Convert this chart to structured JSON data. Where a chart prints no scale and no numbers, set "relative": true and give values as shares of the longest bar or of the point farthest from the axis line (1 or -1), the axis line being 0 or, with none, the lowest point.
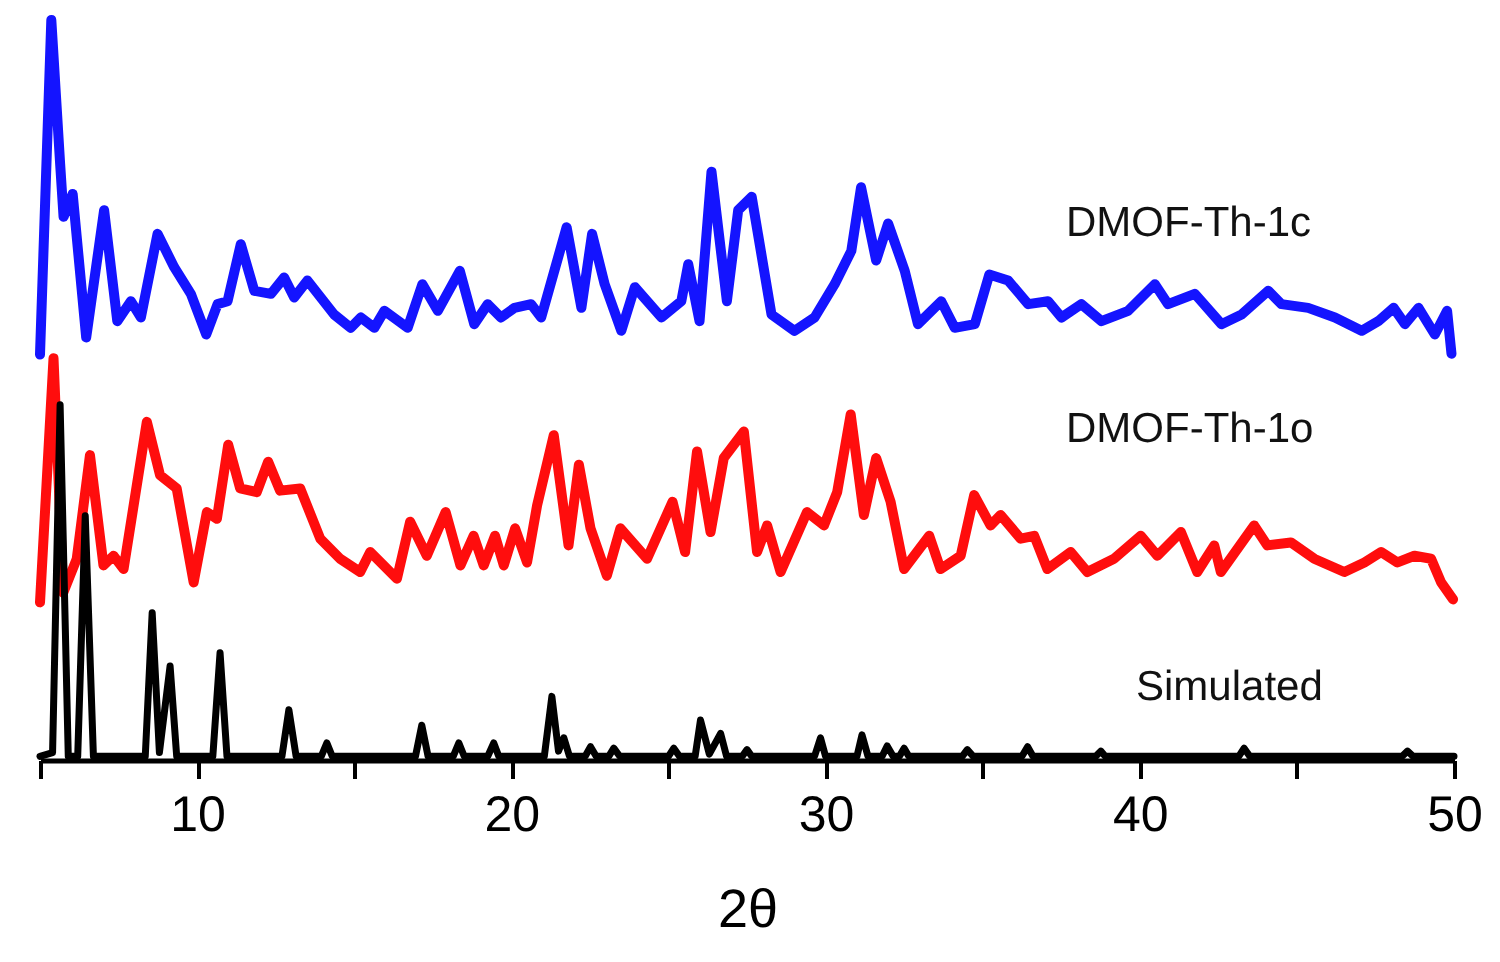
{
  "chart_data": {
    "type": "line",
    "relative": true,
    "xlabel": "2θ",
    "legend": false,
    "marker": "none",
    "line_style": "solid",
    "tick_labels": "x",
    "xlim": [
      5,
      50
    ],
    "xticks": [
      {
        "value": 5,
        "label": null
      },
      10,
      {
        "value": 15,
        "label": null
      },
      20,
      {
        "value": 25,
        "label": null
      },
      30,
      {
        "value": 35,
        "label": null
      },
      40,
      {
        "value": 45,
        "label": null
      },
      50
    ],
    "series": [
      {
        "name": "DMOF-Th-1c",
        "color": "#1414ff",
        "x": [
          5.0,
          5.36,
          5.64,
          5.75,
          6.04,
          6.47,
          7.04,
          7.46,
          7.89,
          8.21,
          8.74,
          9.27,
          9.8,
          10.29,
          10.65,
          10.97,
          11.39,
          11.82,
          12.35,
          12.77,
          13.09,
          13.51,
          14.36,
          14.89,
          15.21,
          15.64,
          15.96,
          16.7,
          17.17,
          17.66,
          18.36,
          18.82,
          19.25,
          19.67,
          20.1,
          20.63,
          20.95,
          21.76,
          22.23,
          22.57,
          22.97,
          23.5,
          23.93,
          24.78,
          25.41,
          25.63,
          25.99,
          26.37,
          26.86,
          27.22,
          27.65,
          28.28,
          29.01,
          29.65,
          30.29,
          30.82,
          31.13,
          31.61,
          31.99,
          32.52,
          32.94,
          33.68,
          34.11,
          34.75,
          35.21,
          35.81,
          36.45,
          37.08,
          37.51,
          38.14,
          38.78,
          39.63,
          40.48,
          40.9,
          41.75,
          42.6,
          43.24,
          44.09,
          44.51,
          45.36,
          46.21,
          47.06,
          47.59,
          48.08,
          48.44,
          48.87,
          49.39,
          49.78,
          49.92
        ],
        "values": [
          0.548,
          1.0,
          0.806,
          0.734,
          0.765,
          0.571,
          0.743,
          0.593,
          0.62,
          0.598,
          0.711,
          0.666,
          0.63,
          0.575,
          0.616,
          0.62,
          0.697,
          0.634,
          0.63,
          0.652,
          0.625,
          0.648,
          0.602,
          0.584,
          0.598,
          0.584,
          0.607,
          0.584,
          0.643,
          0.607,
          0.661,
          0.589,
          0.616,
          0.598,
          0.611,
          0.616,
          0.598,
          0.72,
          0.611,
          0.711,
          0.643,
          0.58,
          0.639,
          0.598,
          0.62,
          0.67,
          0.593,
          0.795,
          0.62,
          0.743,
          0.761,
          0.602,
          0.58,
          0.598,
          0.643,
          0.688,
          0.774,
          0.675,
          0.725,
          0.661,
          0.589,
          0.62,
          0.584,
          0.589,
          0.656,
          0.648,
          0.616,
          0.62,
          0.598,
          0.616,
          0.593,
          0.607,
          0.643,
          0.616,
          0.63,
          0.589,
          0.602,
          0.634,
          0.616,
          0.611,
          0.598,
          0.58,
          0.593,
          0.611,
          0.589,
          0.611,
          0.575,
          0.607,
          0.549
        ]
      },
      {
        "name": "DMOF-Th-1o",
        "color": "#ff0d0d",
        "x": [
          5.0,
          5.43,
          5.74,
          6.17,
          6.59,
          7.02,
          7.34,
          7.66,
          8.4,
          8.82,
          9.35,
          9.89,
          10.31,
          10.63,
          10.99,
          11.37,
          11.9,
          12.26,
          12.64,
          13.28,
          13.92,
          14.55,
          15.19,
          15.51,
          16.36,
          16.78,
          17.31,
          17.91,
          18.38,
          18.8,
          19.12,
          19.48,
          19.76,
          20.12,
          20.5,
          20.82,
          21.35,
          21.82,
          22.15,
          22.52,
          23.04,
          23.47,
          24.32,
          25.13,
          25.53,
          25.91,
          26.34,
          26.76,
          27.4,
          27.82,
          28.14,
          28.57,
          29.41,
          29.95,
          30.37,
          30.8,
          31.22,
          31.61,
          32.07,
          32.5,
          33.3,
          33.66,
          34.3,
          34.73,
          35.25,
          35.57,
          36.21,
          36.64,
          37.06,
          37.8,
          38.33,
          39.18,
          40.03,
          40.56,
          41.31,
          41.83,
          42.37,
          42.58,
          43.64,
          44.06,
          44.81,
          45.55,
          46.51,
          47.15,
          47.68,
          48.2,
          48.74,
          49.27,
          49.59,
          49.97
        ],
        "values": [
          0.213,
          0.543,
          0.226,
          0.272,
          0.412,
          0.263,
          0.276,
          0.258,
          0.457,
          0.385,
          0.367,
          0.24,
          0.335,
          0.326,
          0.426,
          0.367,
          0.362,
          0.403,
          0.364,
          0.367,
          0.299,
          0.272,
          0.254,
          0.281,
          0.245,
          0.322,
          0.276,
          0.335,
          0.263,
          0.303,
          0.263,
          0.303,
          0.263,
          0.313,
          0.267,
          0.344,
          0.439,
          0.29,
          0.399,
          0.313,
          0.249,
          0.313,
          0.272,
          0.349,
          0.281,
          0.417,
          0.308,
          0.408,
          0.444,
          0.281,
          0.317,
          0.254,
          0.335,
          0.317,
          0.362,
          0.467,
          0.331,
          0.408,
          0.349,
          0.258,
          0.303,
          0.258,
          0.276,
          0.358,
          0.317,
          0.331,
          0.299,
          0.303,
          0.258,
          0.281,
          0.254,
          0.272,
          0.303,
          0.276,
          0.308,
          0.254,
          0.29,
          0.254,
          0.317,
          0.29,
          0.294,
          0.272,
          0.254,
          0.267,
          0.281,
          0.267,
          0.276,
          0.272,
          0.24,
          0.217
        ]
      },
      {
        "name": "Simulated",
        "color": "#000000",
        "x": [
          5.0,
          5.4,
          5.64,
          5.9,
          6.2,
          6.44,
          6.7,
          8.35,
          8.57,
          8.8,
          9.14,
          9.35,
          10.5,
          10.73,
          10.95,
          12.7,
          12.92,
          13.15,
          13.95,
          14.13,
          14.3,
          16.95,
          17.15,
          17.35,
          18.15,
          18.33,
          18.5,
          19.25,
          19.44,
          19.6,
          21.05,
          21.29,
          21.5,
          21.67,
          21.85,
          22.35,
          22.52,
          22.7,
          23.1,
          23.26,
          23.45,
          25.0,
          25.17,
          25.35,
          25.85,
          26.02,
          26.3,
          26.66,
          26.85,
          27.35,
          27.5,
          27.65,
          29.65,
          29.84,
          30.0,
          31.0,
          31.16,
          31.35,
          31.8,
          31.96,
          32.15,
          32.35,
          32.5,
          32.65,
          34.35,
          34.51,
          34.7,
          36.25,
          36.43,
          36.6,
          38.6,
          38.76,
          38.9,
          43.15,
          43.32,
          43.5,
          48.35,
          48.52,
          48.7,
          50.0
        ],
        "values": [
          0.005,
          0.01,
          0.48,
          0.005,
          0.005,
          0.33,
          0.005,
          0.005,
          0.199,
          0.01,
          0.127,
          0.005,
          0.005,
          0.145,
          0.005,
          0.005,
          0.068,
          0.005,
          0.005,
          0.023,
          0.005,
          0.005,
          0.047,
          0.005,
          0.005,
          0.023,
          0.005,
          0.005,
          0.023,
          0.005,
          0.005,
          0.086,
          0.012,
          0.03,
          0.005,
          0.005,
          0.018,
          0.005,
          0.005,
          0.016,
          0.005,
          0.005,
          0.016,
          0.005,
          0.005,
          0.054,
          0.008,
          0.036,
          0.005,
          0.005,
          0.014,
          0.005,
          0.005,
          0.03,
          0.005,
          0.005,
          0.034,
          0.005,
          0.005,
          0.019,
          0.005,
          0.005,
          0.016,
          0.005,
          0.005,
          0.014,
          0.005,
          0.005,
          0.018,
          0.005,
          0.005,
          0.012,
          0.005,
          0.005,
          0.016,
          0.005,
          0.005,
          0.012,
          0.005,
          0.005
        ]
      }
    ]
  }
}
